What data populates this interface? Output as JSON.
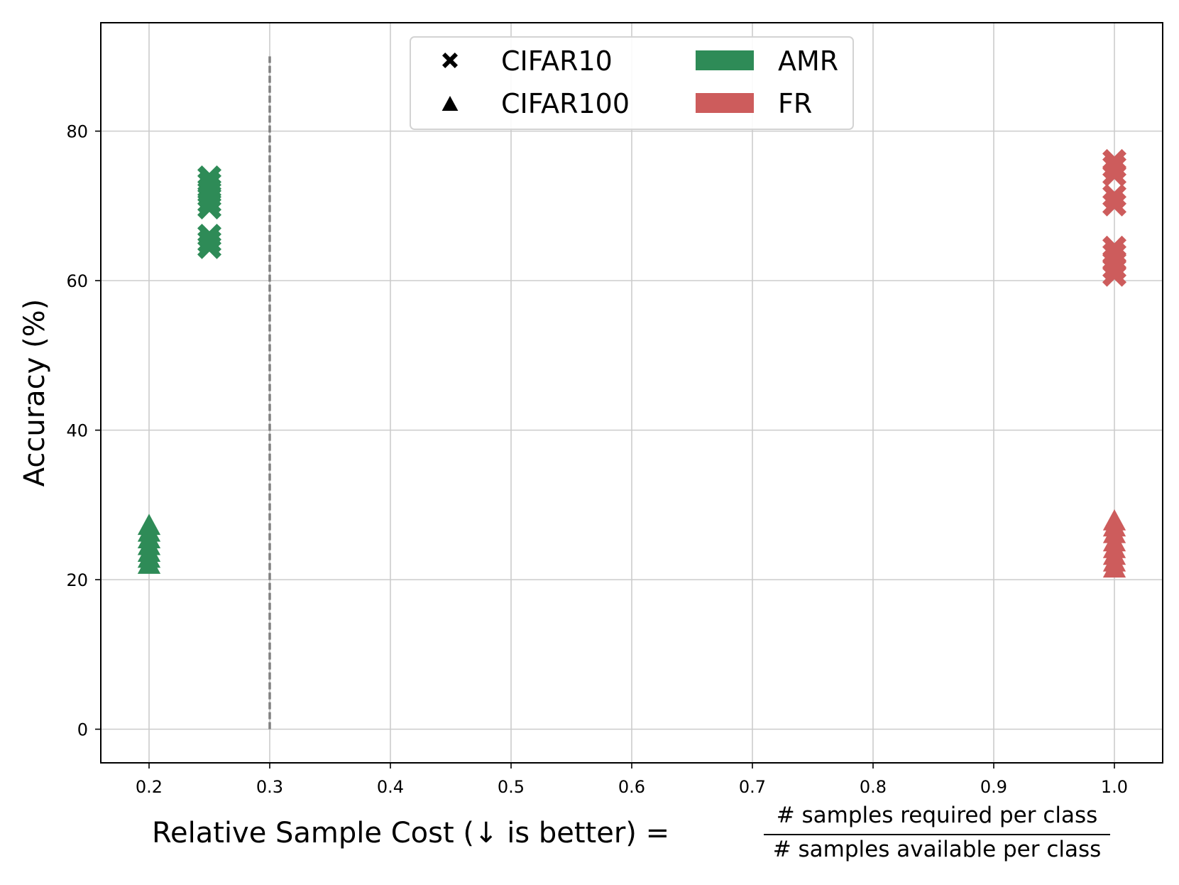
{
  "colors": {
    "amr": "#2e8b57",
    "fr": "#cd5c5c",
    "grid": "#cccccc",
    "threshold": "#808080",
    "axis": "#000000"
  },
  "chart_data": {
    "type": "scatter",
    "xlabel": "Relative Sample Cost (↓ is better) =",
    "xlabel_fraction": {
      "numerator": "# samples required per class",
      "denominator": "# samples available per class"
    },
    "ylabel": "Accuracy (%)",
    "xlim": [
      0.16,
      1.04
    ],
    "ylim": [
      -4.5,
      94.5
    ],
    "x_ticks": [
      0.2,
      0.3,
      0.4,
      0.5,
      0.6,
      0.7,
      0.8,
      0.9,
      1.0
    ],
    "x_tick_labels": [
      "0.2",
      "0.3",
      "0.4",
      "0.5",
      "0.6",
      "0.7",
      "0.8",
      "0.9",
      "1.0"
    ],
    "y_ticks": [
      0,
      20,
      40,
      60,
      80
    ],
    "y_tick_labels": [
      "0",
      "20",
      "40",
      "60",
      "80"
    ],
    "grid": true,
    "threshold_line": {
      "x": 0.3,
      "y_range": [
        0,
        90
      ],
      "style": "dashed"
    },
    "legend": {
      "placement": "upper-center",
      "entries": [
        {
          "label": "CIFAR10",
          "kind": "marker",
          "marker": "x-icon"
        },
        {
          "label": "CIFAR100",
          "kind": "marker",
          "marker": "triangle-icon"
        },
        {
          "label": "AMR",
          "kind": "patch",
          "color_key": "amr"
        },
        {
          "label": "FR",
          "kind": "patch",
          "color_key": "fr"
        }
      ]
    },
    "series": [
      {
        "method": "AMR",
        "dataset": "CIFAR10",
        "marker": "x",
        "color_key": "amr",
        "x": 0.25,
        "y": [
          64.5,
          65.2,
          66.0,
          69.8,
          70.5,
          71.3,
          72.2,
          73.0,
          73.8
        ]
      },
      {
        "method": "AMR",
        "dataset": "CIFAR100",
        "marker": "triangle",
        "color_key": "amr",
        "x": 0.2,
        "y": [
          22.0,
          22.8,
          23.6,
          24.5,
          25.4,
          26.3,
          27.2
        ]
      },
      {
        "method": "FR",
        "dataset": "CIFAR10",
        "marker": "x",
        "color_key": "fr",
        "x": 1.0,
        "y": [
          60.8,
          61.7,
          62.6,
          63.5,
          64.4,
          70.2,
          71.3,
          74.2,
          75.2,
          76.0
        ]
      },
      {
        "method": "FR",
        "dataset": "CIFAR100",
        "marker": "triangle",
        "color_key": "fr",
        "x": 1.0,
        "y": [
          21.5,
          22.3,
          23.2,
          24.1,
          25.0,
          26.1,
          27.0,
          27.8
        ]
      }
    ]
  }
}
